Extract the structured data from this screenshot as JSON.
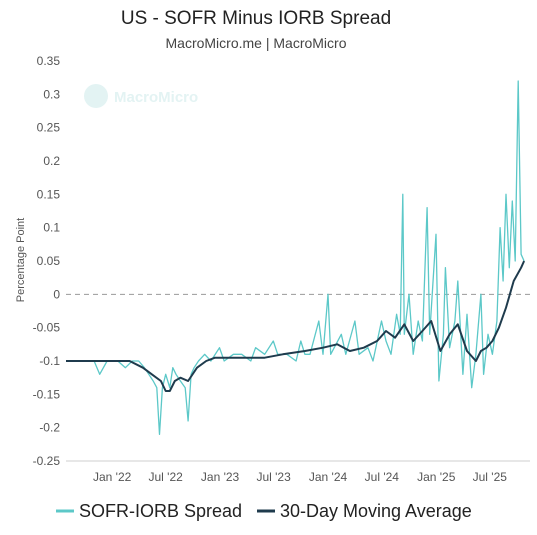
{
  "chart_data": {
    "type": "line",
    "title": "US - SOFR Minus IORB Spread",
    "subtitle": "MacroMicro.me | MacroMicro",
    "watermark": "MacroMicro",
    "ylabel": "Percentage Point",
    "xlabel": "",
    "ylim": [
      -0.25,
      0.35
    ],
    "yticks": [
      -0.25,
      -0.2,
      -0.15,
      -0.1,
      -0.05,
      0,
      0.05,
      0.1,
      0.15,
      0.2,
      0.25,
      0.3,
      0.35
    ],
    "ytick_labels": [
      "-0.25",
      "-0.2",
      "-0.15",
      "-0.1",
      "-0.05",
      "0",
      "0.05",
      "0.1",
      "0.15",
      "0.2",
      "0.25",
      "0.3",
      "0.35"
    ],
    "xlim": [
      "2021-07-29",
      "2025-11-14"
    ],
    "xticks": [
      "2022-01-01",
      "2022-07-01",
      "2023-01-01",
      "2023-07-01",
      "2024-01-01",
      "2024-07-01",
      "2025-01-01",
      "2025-07-01"
    ],
    "xtick_labels": [
      "Jan '22",
      "Jul '22",
      "Jan '23",
      "Jul '23",
      "Jan '24",
      "Jul '24",
      "Jan '25",
      "Jul '25"
    ],
    "zero_line": true,
    "grid": false,
    "legend_position": "bottom",
    "series": [
      {
        "name": "SOFR-IORB Spread",
        "color": "#5cc8c8",
        "points": [
          [
            "2021-07-29",
            -0.1
          ],
          [
            "2021-09-01",
            -0.1
          ],
          [
            "2021-10-01",
            -0.1
          ],
          [
            "2021-11-01",
            -0.1
          ],
          [
            "2021-11-20",
            -0.12
          ],
          [
            "2021-12-15",
            -0.1
          ],
          [
            "2022-01-20",
            -0.1
          ],
          [
            "2022-02-15",
            -0.11
          ],
          [
            "2022-03-10",
            -0.1
          ],
          [
            "2022-04-01",
            -0.1
          ],
          [
            "2022-04-20",
            -0.11
          ],
          [
            "2022-05-05",
            -0.12
          ],
          [
            "2022-05-20",
            -0.13
          ],
          [
            "2022-06-01",
            -0.14
          ],
          [
            "2022-06-10",
            -0.21
          ],
          [
            "2022-06-20",
            -0.14
          ],
          [
            "2022-07-01",
            -0.12
          ],
          [
            "2022-07-15",
            -0.14
          ],
          [
            "2022-07-25",
            -0.11
          ],
          [
            "2022-08-05",
            -0.12
          ],
          [
            "2022-08-20",
            -0.13
          ],
          [
            "2022-09-05",
            -0.14
          ],
          [
            "2022-09-15",
            -0.19
          ],
          [
            "2022-09-25",
            -0.12
          ],
          [
            "2022-10-05",
            -0.11
          ],
          [
            "2022-10-20",
            -0.1
          ],
          [
            "2022-11-10",
            -0.09
          ],
          [
            "2022-12-01",
            -0.1
          ],
          [
            "2022-12-30",
            -0.08
          ],
          [
            "2023-01-15",
            -0.1
          ],
          [
            "2023-02-15",
            -0.09
          ],
          [
            "2023-03-15",
            -0.09
          ],
          [
            "2023-04-15",
            -0.1
          ],
          [
            "2023-05-01",
            -0.08
          ],
          [
            "2023-06-01",
            -0.09
          ],
          [
            "2023-06-30",
            -0.07
          ],
          [
            "2023-07-15",
            -0.09
          ],
          [
            "2023-08-15",
            -0.09
          ],
          [
            "2023-09-15",
            -0.1
          ],
          [
            "2023-10-01",
            -0.07
          ],
          [
            "2023-10-15",
            -0.09
          ],
          [
            "2023-11-01",
            -0.09
          ],
          [
            "2023-12-01",
            -0.04
          ],
          [
            "2023-12-15",
            -0.09
          ],
          [
            "2024-01-01",
            0.0
          ],
          [
            "2024-01-10",
            -0.09
          ],
          [
            "2024-02-15",
            -0.06
          ],
          [
            "2024-03-01",
            -0.09
          ],
          [
            "2024-04-01",
            -0.04
          ],
          [
            "2024-04-15",
            -0.09
          ],
          [
            "2024-05-15",
            -0.08
          ],
          [
            "2024-06-01",
            -0.1
          ],
          [
            "2024-06-30",
            -0.04
          ],
          [
            "2024-07-15",
            -0.07
          ],
          [
            "2024-08-01",
            -0.09
          ],
          [
            "2024-08-20",
            -0.03
          ],
          [
            "2024-09-01",
            -0.06
          ],
          [
            "2024-09-10",
            0.15
          ],
          [
            "2024-09-15",
            -0.06
          ],
          [
            "2024-10-01",
            0.0
          ],
          [
            "2024-10-15",
            -0.09
          ],
          [
            "2024-11-01",
            -0.04
          ],
          [
            "2024-11-15",
            -0.07
          ],
          [
            "2024-12-01",
            0.13
          ],
          [
            "2024-12-10",
            -0.06
          ],
          [
            "2024-12-31",
            0.09
          ],
          [
            "2025-01-10",
            -0.13
          ],
          [
            "2025-01-25",
            -0.06
          ],
          [
            "2025-02-01",
            0.04
          ],
          [
            "2025-02-15",
            -0.08
          ],
          [
            "2025-03-05",
            -0.04
          ],
          [
            "2025-03-15",
            0.02
          ],
          [
            "2025-04-01",
            -0.12
          ],
          [
            "2025-04-15",
            -0.03
          ],
          [
            "2025-05-01",
            -0.14
          ],
          [
            "2025-05-15",
            -0.09
          ],
          [
            "2025-06-01",
            0.0
          ],
          [
            "2025-06-10",
            -0.12
          ],
          [
            "2025-06-25",
            -0.06
          ],
          [
            "2025-07-10",
            -0.09
          ],
          [
            "2025-07-25",
            -0.04
          ],
          [
            "2025-08-05",
            0.1
          ],
          [
            "2025-08-15",
            0.02
          ],
          [
            "2025-08-25",
            0.15
          ],
          [
            "2025-09-05",
            0.04
          ],
          [
            "2025-09-15",
            0.14
          ],
          [
            "2025-09-25",
            0.05
          ],
          [
            "2025-10-05",
            0.32
          ],
          [
            "2025-10-15",
            0.06
          ],
          [
            "2025-10-25",
            0.05
          ]
        ]
      },
      {
        "name": "30-Day Moving Average",
        "color": "#1f3b4d",
        "points": [
          [
            "2021-07-29",
            -0.1
          ],
          [
            "2021-12-01",
            -0.1
          ],
          [
            "2022-03-01",
            -0.1
          ],
          [
            "2022-04-15",
            -0.11
          ],
          [
            "2022-05-15",
            -0.12
          ],
          [
            "2022-06-15",
            -0.13
          ],
          [
            "2022-07-01",
            -0.145
          ],
          [
            "2022-07-15",
            -0.145
          ],
          [
            "2022-08-01",
            -0.13
          ],
          [
            "2022-08-20",
            -0.125
          ],
          [
            "2022-09-15",
            -0.13
          ],
          [
            "2022-10-15",
            -0.11
          ],
          [
            "2022-11-15",
            -0.1
          ],
          [
            "2022-12-15",
            -0.095
          ],
          [
            "2023-03-01",
            -0.095
          ],
          [
            "2023-06-01",
            -0.095
          ],
          [
            "2023-08-01",
            -0.09
          ],
          [
            "2023-10-15",
            -0.085
          ],
          [
            "2023-12-15",
            -0.08
          ],
          [
            "2024-02-01",
            -0.075
          ],
          [
            "2024-03-15",
            -0.085
          ],
          [
            "2024-05-01",
            -0.08
          ],
          [
            "2024-06-15",
            -0.07
          ],
          [
            "2024-07-15",
            -0.055
          ],
          [
            "2024-08-15",
            -0.065
          ],
          [
            "2024-09-15",
            -0.045
          ],
          [
            "2024-10-15",
            -0.07
          ],
          [
            "2024-11-15",
            -0.055
          ],
          [
            "2024-12-15",
            -0.04
          ],
          [
            "2025-01-15",
            -0.085
          ],
          [
            "2025-02-15",
            -0.06
          ],
          [
            "2025-03-15",
            -0.045
          ],
          [
            "2025-04-15",
            -0.085
          ],
          [
            "2025-05-15",
            -0.1
          ],
          [
            "2025-06-01",
            -0.085
          ],
          [
            "2025-06-20",
            -0.08
          ],
          [
            "2025-07-10",
            -0.07
          ],
          [
            "2025-08-01",
            -0.05
          ],
          [
            "2025-08-25",
            -0.02
          ],
          [
            "2025-09-20",
            0.02
          ],
          [
            "2025-10-15",
            0.04
          ],
          [
            "2025-10-25",
            0.05
          ]
        ]
      }
    ]
  }
}
